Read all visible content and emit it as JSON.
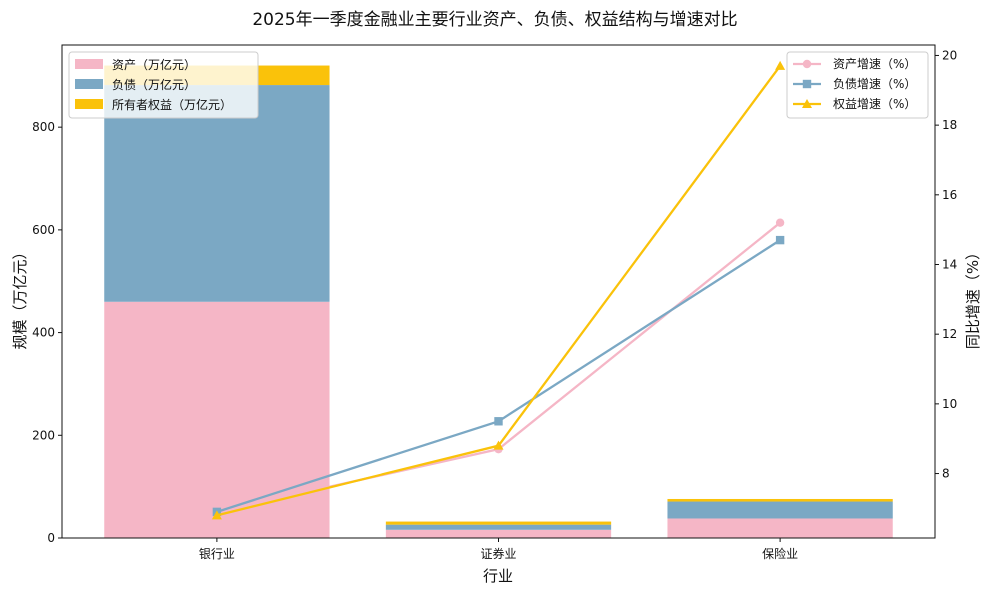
{
  "chart_data": {
    "type": "bar+line",
    "title": "2025年一季度金融业主要行业资产、负债、权益结构与增速对比",
    "xlabel": "行业",
    "ylabel_left": "规模（万亿元）",
    "ylabel_right": "同比增速（%）",
    "categories": [
      "银行业",
      "证券业",
      "保险业"
    ],
    "y_left": {
      "min": 0,
      "max": 960,
      "ticks": [
        0,
        200,
        400,
        600,
        800
      ]
    },
    "y_right": {
      "min": 6.15,
      "max": 20.3,
      "ticks": [
        8,
        10,
        12,
        14,
        16,
        18,
        20
      ]
    },
    "bar_series": [
      {
        "name": "资产（万亿元）",
        "color": "#F5B6C6",
        "values": [
          460,
          16,
          38
        ]
      },
      {
        "name": "负债（万亿元）",
        "color": "#7BA8C4",
        "values": [
          422,
          10,
          33
        ]
      },
      {
        "name": "所有者权益（万亿元）",
        "color": "#FAC20A",
        "values": [
          38,
          6,
          5
        ]
      }
    ],
    "line_series": [
      {
        "name": "资产增速（%）",
        "color": "#F5B6C6",
        "marker": "circle",
        "values": [
          6.9,
          8.7,
          15.2
        ]
      },
      {
        "name": "负债增速（%）",
        "color": "#7BA8C4",
        "marker": "square",
        "values": [
          6.9,
          9.5,
          14.7
        ]
      },
      {
        "name": "权益增速（%）",
        "color": "#FAC20A",
        "marker": "triangle",
        "values": [
          6.8,
          8.8,
          19.7
        ]
      }
    ],
    "bar_legend_placement": "top-left",
    "line_legend_placement": "top-right",
    "grid": false,
    "right_axis_label_color": "#E8883A"
  }
}
